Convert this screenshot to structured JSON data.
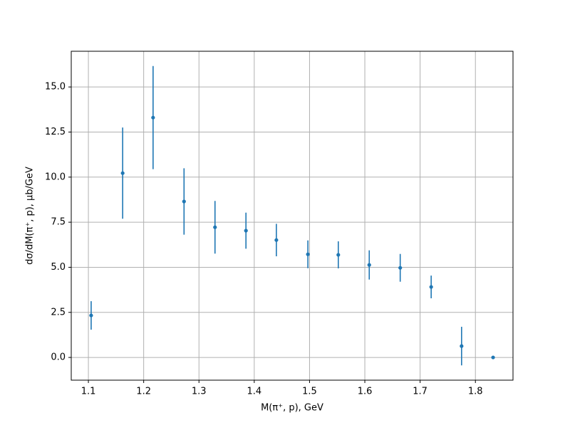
{
  "chart_data": {
    "type": "scatter",
    "xlabel": "M(π⁺, p), GeV",
    "ylabel": "dσ/dM(π⁺, p), μb/GeV",
    "x": [
      1.105,
      1.162,
      1.217,
      1.273,
      1.329,
      1.385,
      1.44,
      1.497,
      1.552,
      1.608,
      1.664,
      1.72,
      1.775,
      1.832
    ],
    "series": [
      {
        "color": "#1f77b4",
        "values": [
          2.33,
          10.22,
          13.3,
          8.65,
          7.22,
          7.03,
          6.51,
          5.72,
          5.69,
          5.13,
          4.97,
          3.91,
          0.63,
          0
        ],
        "errors": [
          0.79,
          2.53,
          2.86,
          1.84,
          1.46,
          1.0,
          0.9,
          0.77,
          0.75,
          0.81,
          0.77,
          0.63,
          1.07,
          0
        ]
      }
    ],
    "xlim": [
      1.069,
      1.868
    ],
    "ylim": [
      -1.26,
      16.98
    ],
    "xticks": [
      1.1,
      1.2,
      1.3,
      1.4,
      1.5,
      1.6,
      1.7,
      1.8
    ],
    "yticks": [
      {
        "value": 0,
        "label": "0.0"
      },
      2.5,
      {
        "value": 5,
        "label": "5.0"
      },
      7.5,
      {
        "value": 10,
        "label": "10.0"
      },
      12.5,
      {
        "value": 15,
        "label": "15.0"
      }
    ],
    "grid": true
  }
}
